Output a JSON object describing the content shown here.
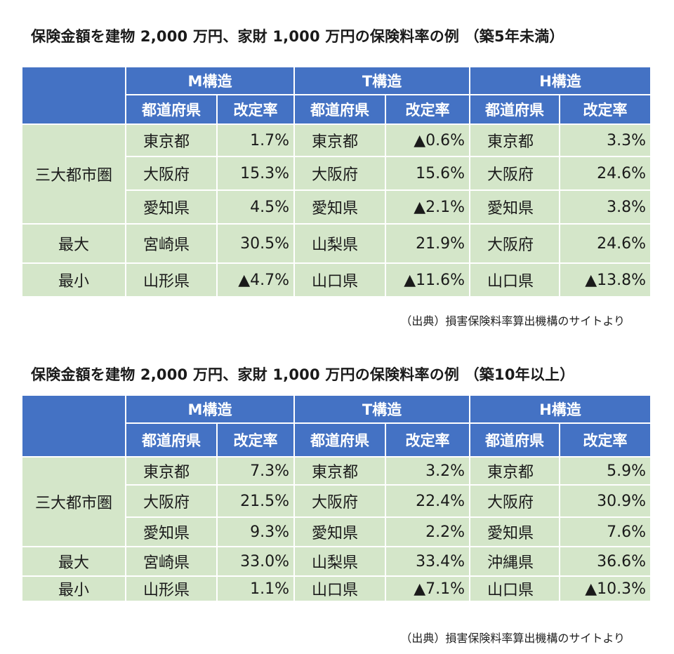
{
  "sections": [
    {
      "title": "保険金額を建物 2,000 万円、家財 1,000 万円の保険料率の例 （築5年未満）",
      "source": "（出典）損害保険料率算出機構のサイトより",
      "structures": [
        "M構造",
        "T構造",
        "H構造"
      ],
      "col_pref": "都道府県",
      "col_rate": "改定率",
      "rows": [
        {
          "category": "三大都市圏",
          "cells": [
            [
              "東京都",
              "1.7%"
            ],
            [
              "東京都",
              "▲0.6%"
            ],
            [
              "東京都",
              "3.3%"
            ]
          ]
        },
        {
          "category": "",
          "cells": [
            [
              "大阪府",
              "15.3%"
            ],
            [
              "大阪府",
              "15.6%"
            ],
            [
              "大阪府",
              "24.6%"
            ]
          ]
        },
        {
          "category": "",
          "cells": [
            [
              "愛知県",
              "4.5%"
            ],
            [
              "愛知県",
              "▲2.1%"
            ],
            [
              "愛知県",
              "3.8%"
            ]
          ]
        },
        {
          "category": "最大",
          "cells": [
            [
              "宮崎県",
              "30.5%"
            ],
            [
              "山梨県",
              "21.9%"
            ],
            [
              "大阪府",
              "24.6%"
            ]
          ]
        },
        {
          "category": "最小",
          "cells": [
            [
              "山形県",
              "▲4.7%"
            ],
            [
              "山口県",
              "▲11.6%"
            ],
            [
              "山口県",
              "▲13.8%"
            ]
          ]
        }
      ]
    },
    {
      "title": "保険金額を建物 2,000 万円、家財 1,000 万円の保険料率の例 （築10年以上）",
      "source": "（出典）損害保険料率算出機構のサイトより",
      "structures": [
        "M構造",
        "T構造",
        "H構造"
      ],
      "col_pref": "都道府県",
      "col_rate": "改定率",
      "rows": [
        {
          "category": "三大都市圏",
          "cells": [
            [
              "東京都",
              "7.3%"
            ],
            [
              "東京都",
              "3.2%"
            ],
            [
              "東京都",
              "5.9%"
            ]
          ]
        },
        {
          "category": "",
          "cells": [
            [
              "大阪府",
              "21.5%"
            ],
            [
              "大阪府",
              "22.4%"
            ],
            [
              "大阪府",
              "30.9%"
            ]
          ]
        },
        {
          "category": "",
          "cells": [
            [
              "愛知県",
              "9.3%"
            ],
            [
              "愛知県",
              "2.2%"
            ],
            [
              "愛知県",
              "7.6%"
            ]
          ]
        },
        {
          "category": "最大",
          "cells": [
            [
              "宮崎県",
              "33.0%"
            ],
            [
              "山梨県",
              "33.4%"
            ],
            [
              "沖縄県",
              "36.6%"
            ]
          ]
        },
        {
          "category": "最小",
          "cells": [
            [
              "山形県",
              "1.1%"
            ],
            [
              "山口県",
              "▲7.1%"
            ],
            [
              "山口県",
              "▲10.3%"
            ]
          ]
        }
      ]
    }
  ]
}
